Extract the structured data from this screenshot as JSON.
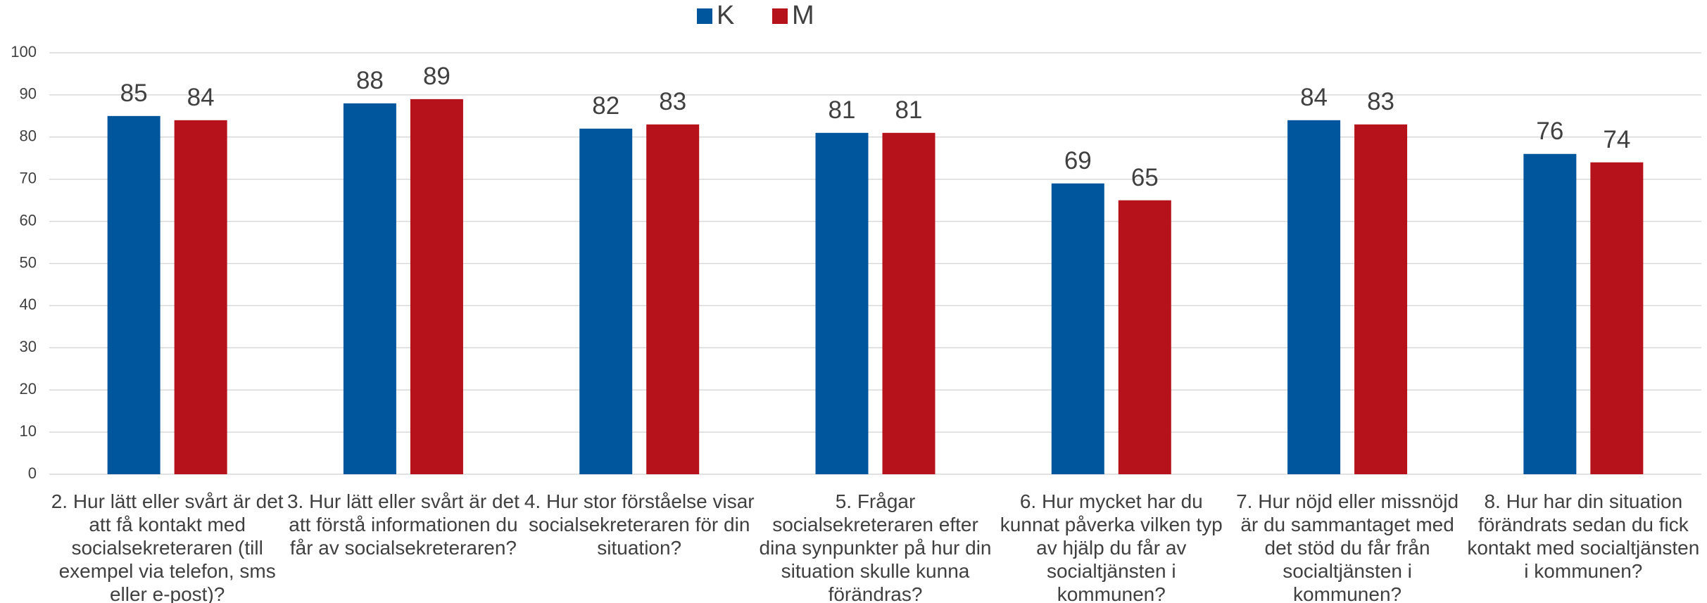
{
  "chart_data": {
    "type": "bar",
    "categories": [
      "2. Hur lätt eller svårt är det att få kontakt med socialsekreteraren (till exempel via telefon, sms eller e-post)?",
      "3. Hur lätt eller svårt är det att förstå informationen du får av socialsekreteraren?",
      "4. Hur stor förståelse visar socialsekreteraren för din situation?",
      "5. Frågar socialsekreteraren efter dina synpunkter på hur din situation skulle kunna förändras?",
      "6. Hur mycket har du kunnat påverka vilken typ av hjälp du får av socialtjänsten i kommunen?",
      "7. Hur nöjd eller missnöjd är du sammantaget med det stöd du får från socialtjänsten i kommunen?",
      "8. Hur har din situation förändrats sedan du fick kontakt med socialtjänsten i kommunen?"
    ],
    "series": [
      {
        "name": "K",
        "color": "#00569c",
        "values": [
          85,
          88,
          82,
          81,
          69,
          84,
          76
        ]
      },
      {
        "name": "M",
        "color": "#b5121b",
        "values": [
          84,
          89,
          83,
          81,
          65,
          83,
          74
        ]
      }
    ],
    "ylim": [
      0,
      100
    ],
    "yticks": [
      0,
      10,
      20,
      30,
      40,
      50,
      60,
      70,
      80,
      90,
      100
    ],
    "grid": true,
    "legend": "top"
  }
}
